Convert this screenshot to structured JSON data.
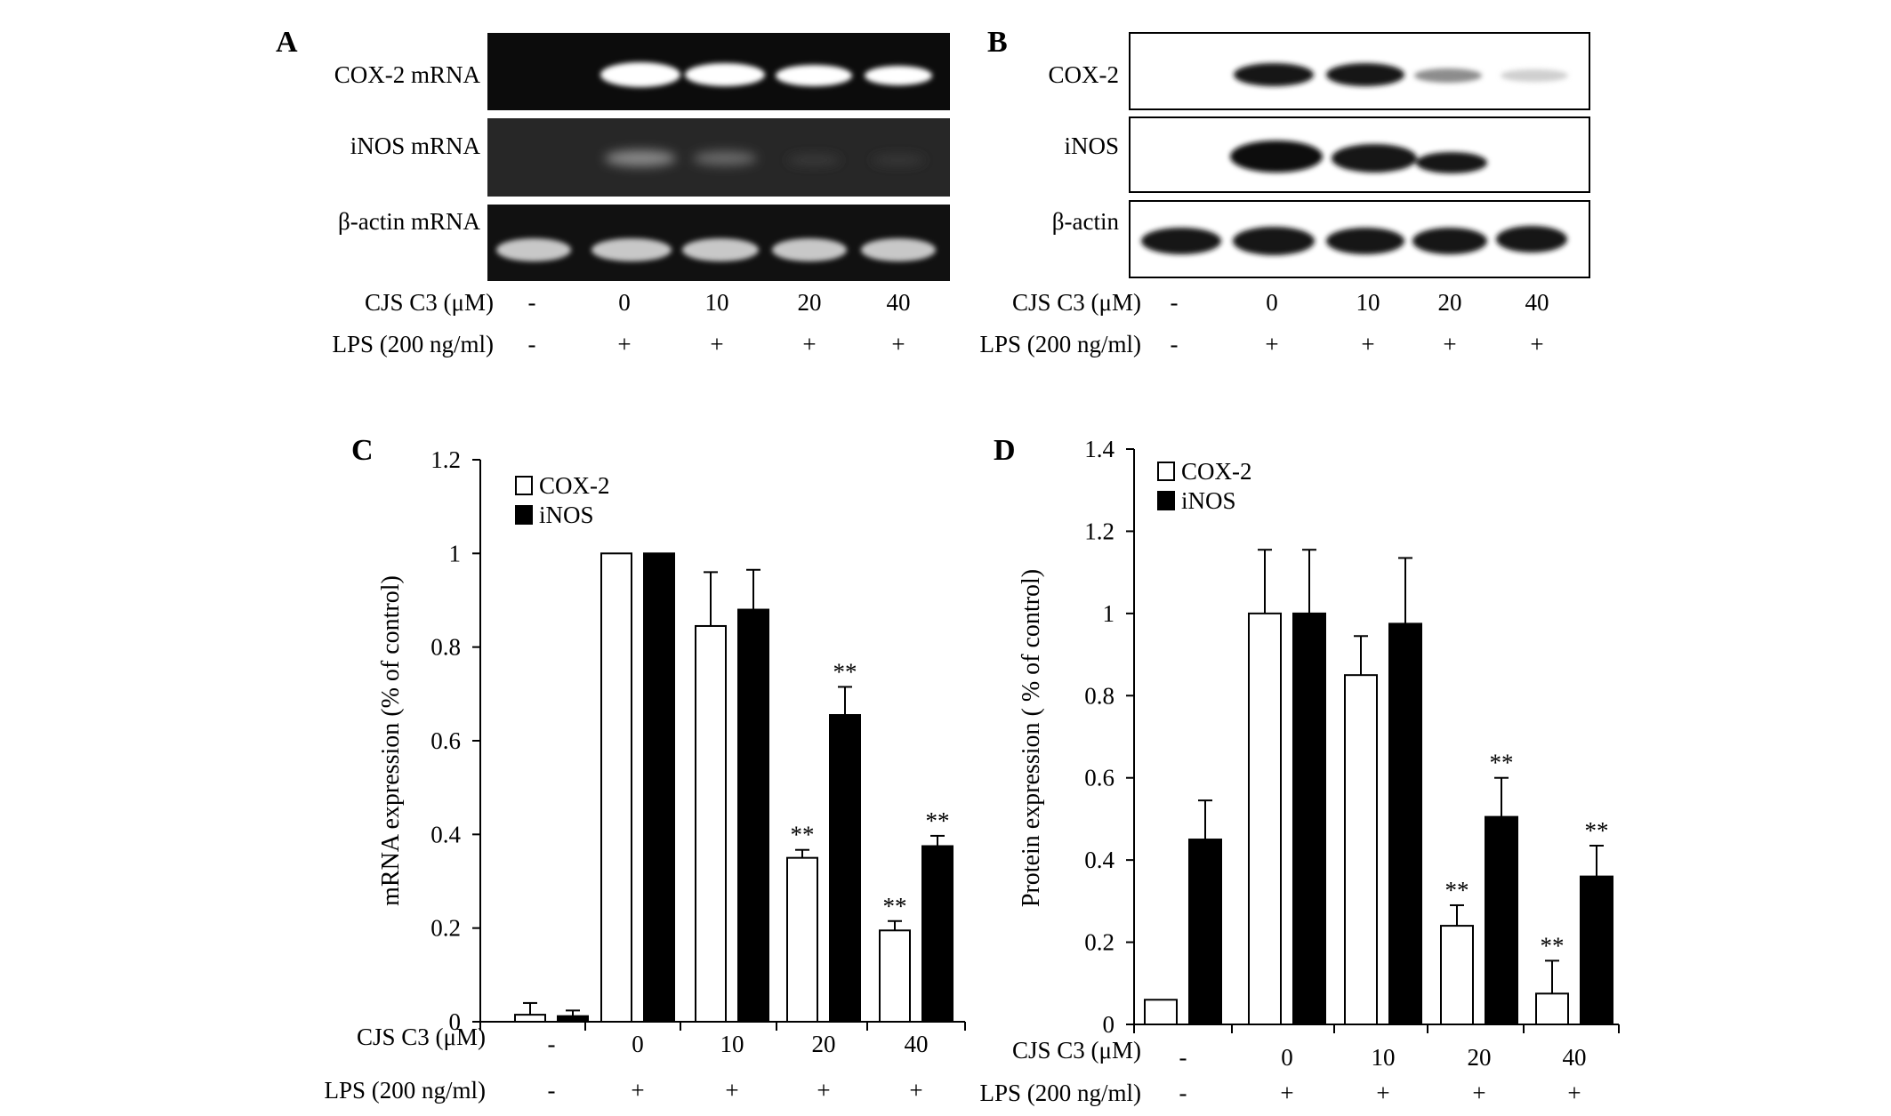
{
  "panels": {
    "A": {
      "letter": "A",
      "blots": [
        "COX-2 mRNA",
        "iNOS mRNA",
        "β-actin mRNA"
      ],
      "treatment_label": "CJS C3 (μM)",
      "lps_label": "LPS (200 ng/ml)",
      "doses": [
        "-",
        "0",
        "10",
        "20",
        "40"
      ],
      "lps": [
        "-",
        "+",
        "+",
        "+",
        "+"
      ]
    },
    "B": {
      "letter": "B",
      "blots": [
        "COX-2",
        "iNOS",
        "β-actin"
      ],
      "treatment_label": "CJS C3 (μM)",
      "lps_label": "LPS (200 ng/ml)",
      "doses": [
        "-",
        "0",
        "10",
        "20",
        "40"
      ],
      "lps": [
        "-",
        "+",
        "+",
        "+",
        "+"
      ]
    }
  },
  "chart_data": [
    {
      "panel": "C",
      "type": "bar",
      "title": "",
      "ylabel": "mRNA expression (% of control)",
      "ylim": [
        0,
        1.2
      ],
      "yticks": [
        "0",
        "0.2",
        "0.4",
        "0.6",
        "0.8",
        "1",
        "1.2"
      ],
      "ytick_values": [
        0,
        0.2,
        0.4,
        0.6,
        0.8,
        1.0,
        1.2
      ],
      "legend_position": "top-left",
      "categories": [
        "-",
        "0",
        "10",
        "20",
        "40"
      ],
      "treatment_label": "CJS C3 (μM)",
      "lps_label": "LPS (200 ng/ml)",
      "lps": [
        "-",
        "+",
        "+",
        "+",
        "+"
      ],
      "series": [
        {
          "name": "COX-2",
          "color": "#ffffff",
          "values": [
            0.015,
            1.0,
            0.845,
            0.35,
            0.195
          ],
          "errors": [
            0.025,
            0,
            0.115,
            0.017,
            0.02
          ],
          "significance": [
            "",
            "",
            "",
            "**",
            "**"
          ]
        },
        {
          "name": "iNOS",
          "color": "#000000",
          "values": [
            0.012,
            1.0,
            0.88,
            0.655,
            0.375
          ],
          "errors": [
            0.012,
            0,
            0.085,
            0.06,
            0.022
          ],
          "significance": [
            "",
            "",
            "",
            "**",
            "**"
          ]
        }
      ]
    },
    {
      "panel": "D",
      "type": "bar",
      "title": "",
      "ylabel": "Protein expression ( % of control)",
      "ylim": [
        0,
        1.4
      ],
      "yticks": [
        "0",
        "0.2",
        "0.4",
        "0.6",
        "0.8",
        "1",
        "1.2",
        "1.4"
      ],
      "ytick_values": [
        0,
        0.2,
        0.4,
        0.6,
        0.8,
        1.0,
        1.2,
        1.4
      ],
      "legend_position": "top-left",
      "categories": [
        "-",
        "0",
        "10",
        "20",
        "40"
      ],
      "treatment_label": "CJS C3 (μM)",
      "lps_label": "LPS (200 ng/ml)",
      "lps": [
        "-",
        "+",
        "+",
        "+",
        "+"
      ],
      "series": [
        {
          "name": "COX-2",
          "color": "#ffffff",
          "values": [
            0.06,
            1.0,
            0.85,
            0.24,
            0.075
          ],
          "errors": [
            0,
            0.155,
            0.095,
            0.05,
            0.08
          ],
          "significance": [
            "",
            "",
            "",
            "**",
            "**"
          ]
        },
        {
          "name": "iNOS",
          "color": "#000000",
          "values": [
            0.45,
            1.0,
            0.975,
            0.505,
            0.36
          ],
          "errors": [
            0.095,
            0.155,
            0.16,
            0.095,
            0.075
          ],
          "significance": [
            "",
            "",
            "",
            "**",
            "**"
          ]
        }
      ]
    }
  ]
}
